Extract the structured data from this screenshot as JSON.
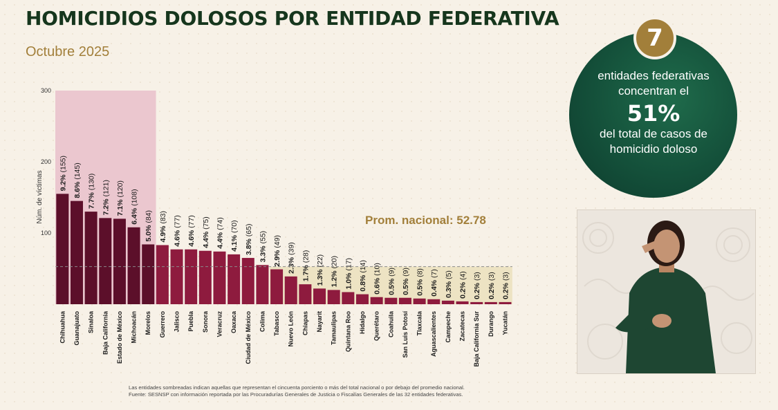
{
  "title": "HOMICIDIOS DOLOSOS POR ENTIDAD FEDERATIVA",
  "subtitle": "Octubre 2025",
  "summary": {
    "count": "7",
    "line1": "entidades federativas concentran el",
    "percent": "51%",
    "line2": "del total de casos de homicidio doloso"
  },
  "footnote": {
    "line1": "Las entidades sombreadas indican aquellas que representan el cincuenta porciento o más del total nacional o por debajo del promedio nacional.",
    "line2": "Fuente: SESNSP con información reportada por las Procuradurías Generales de Justicia o Fiscalías Generales de las 32 entidades federativas."
  },
  "colors": {
    "dark_bar": "#5c0f2a",
    "bar": "#8e1b3e",
    "highlight_top": "#ebc7cf",
    "highlight_low": "#ede3c3",
    "green": "#16361d",
    "gold": "#a27f3a"
  },
  "chart_data": {
    "type": "bar",
    "ylabel": "Núm. de víctimas",
    "yticks": [
      100,
      200,
      300
    ],
    "ylim": [
      0,
      300
    ],
    "average": 52.78,
    "average_label": "Prom. nacional: 52.78",
    "categories": [
      "Chihuahua",
      "Guanajuato",
      "Sinaloa",
      "Baja California",
      "Estado de México",
      "Michoacán",
      "Morelos",
      "Guerrero",
      "Jalisco",
      "Puebla",
      "Sonora",
      "Veracruz",
      "Oaxaca",
      "Ciudad de México",
      "Colima",
      "Tabasco",
      "Nuevo León",
      "Chiapas",
      "Nayarit",
      "Tamaulipas",
      "Quintana Roo",
      "Hidalgo",
      "Querétaro",
      "Coahuila",
      "San Luis Potosí",
      "Tlaxcala",
      "Aguascalientes",
      "Campeche",
      "Zacatecas",
      "Baja California Sur",
      "Durango",
      "Yucatán"
    ],
    "values": [
      155,
      145,
      130,
      121,
      120,
      108,
      84,
      83,
      77,
      77,
      75,
      74,
      70,
      65,
      55,
      49,
      39,
      28,
      22,
      20,
      17,
      14,
      10,
      9,
      9,
      8,
      7,
      5,
      4,
      3,
      3,
      3
    ],
    "percents": [
      "9.2%",
      "8.6%",
      "7.7%",
      "7.2%",
      "7.1%",
      "6.4%",
      "5.0%",
      "4.9%",
      "4.6%",
      "4.6%",
      "4.4%",
      "4.4%",
      "4.1%",
      "3.8%",
      "3.3%",
      "2.9%",
      "2.3%",
      "1.7%",
      "1.3%",
      "1.2%",
      "1.0%",
      "0.8%",
      "0.6%",
      "0.5%",
      "0.5%",
      "0.5%",
      "0.4%",
      "0.3%",
      "0.2%",
      "0.2%",
      "0.2%",
      "0.2%"
    ],
    "counts": [
      "(155)",
      "(145)",
      "(130)",
      "(121)",
      "(120)",
      "(108)",
      "(84)",
      "(83)",
      "(77)",
      "(77)",
      "(75)",
      "(74)",
      "(70)",
      "(65)",
      "(55)",
      "(49)",
      "(39)",
      "(28)",
      "(22)",
      "(20)",
      "(17)",
      "(14)",
      "(10)",
      "(9)",
      "(9)",
      "(8)",
      "(7)",
      "(5)",
      "(4)",
      "(3)",
      "(3)",
      "(3)"
    ],
    "highlighted_top": [
      "Chihuahua",
      "Guanajuato",
      "Sinaloa",
      "Baja California",
      "Estado de México",
      "Michoacán",
      "Morelos"
    ],
    "grid": false
  }
}
